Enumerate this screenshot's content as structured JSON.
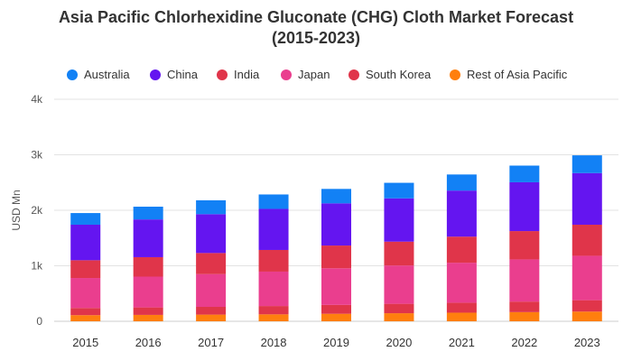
{
  "chart_data": {
    "type": "bar",
    "stacked": true,
    "title_line1": "Asia Pacific Chlorhexidine Gluconate (CHG) Cloth Market Forecast",
    "title_line2": "(2015-2023)",
    "xlabel": "",
    "ylabel": "USD Mn",
    "ylim": [
      0,
      4000
    ],
    "yticks": [
      "0",
      "1k",
      "2k",
      "3k",
      "4k"
    ],
    "grid": true,
    "legend_position": "top",
    "categories": [
      "2015",
      "2016",
      "2017",
      "2018",
      "2019",
      "2020",
      "2021",
      "2022",
      "2023"
    ],
    "series": [
      {
        "name": "Rest of Asia Pacific",
        "color": "#FF7F0E",
        "values": [
          110,
          115,
          120,
          125,
          135,
          145,
          155,
          165,
          175
        ]
      },
      {
        "name": "South Korea",
        "color": "#E0354A",
        "values": [
          130,
          135,
          140,
          150,
          160,
          170,
          180,
          190,
          205
        ]
      },
      {
        "name": "Japan",
        "color": "#EA3E8E",
        "values": [
          540,
          555,
          590,
          620,
          660,
          690,
          720,
          760,
          800
        ]
      },
      {
        "name": "India",
        "color": "#E0354A",
        "values": [
          320,
          350,
          380,
          390,
          410,
          430,
          470,
          510,
          560
        ]
      },
      {
        "name": "China",
        "color": "#6415F0",
        "values": [
          640,
          680,
          700,
          740,
          760,
          780,
          830,
          880,
          930
        ]
      },
      {
        "name": "Australia",
        "color": "#1281F5",
        "values": [
          210,
          230,
          250,
          260,
          260,
          280,
          290,
          300,
          320
        ]
      }
    ],
    "legend_order": [
      "Australia",
      "China",
      "India",
      "Japan",
      "South Korea",
      "Rest of Asia Pacific"
    ]
  }
}
